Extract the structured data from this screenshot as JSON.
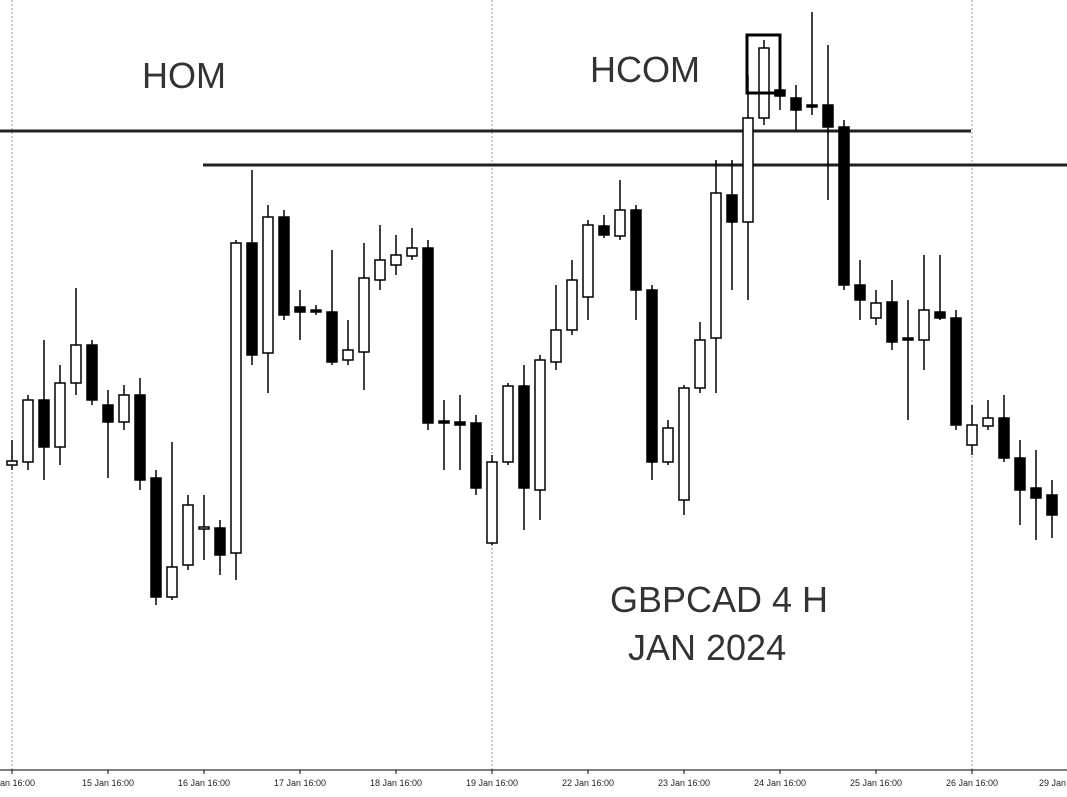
{
  "chart_data": {
    "type": "candlestick",
    "annotations": [
      "HOM",
      "HCOM",
      "GBPCAD 4 H",
      "JAN 2024"
    ],
    "x_tick_labels": [
      "an 16:00",
      "15 Jan 16:00",
      "16 Jan 16:00",
      "17 Jan 16:00",
      "18 Jan 16:00",
      "19 Jan 16:00",
      "22 Jan 16:00",
      "23 Jan 16:00",
      "24 Jan 16:00",
      "25 Jan 16:00",
      "26 Jan 16:00",
      "29 Jan"
    ],
    "ylim": [
      0,
      770
    ],
    "levels": [
      639,
      605
    ],
    "up_color": "#ffffff",
    "down_color": "#000000",
    "open": [
      305,
      308,
      370,
      323,
      387,
      425,
      365,
      348,
      375,
      292,
      173,
      205,
      241,
      242,
      217,
      527,
      417,
      553,
      463,
      460,
      458,
      410,
      418,
      490,
      505,
      514,
      522,
      349,
      348,
      347,
      227,
      308,
      384,
      280,
      408,
      440,
      473,
      544,
      534,
      560,
      480,
      308,
      270,
      382,
      432,
      575,
      548,
      652,
      680,
      672,
      665,
      665,
      643,
      485,
      452,
      468,
      432,
      430,
      458,
      452,
      325,
      344,
      352,
      312,
      282,
      275
    ],
    "high": [
      330,
      375,
      430,
      405,
      482,
      430,
      380,
      385,
      392,
      300,
      328,
      275,
      275,
      250,
      530,
      600,
      565,
      560,
      480,
      465,
      520,
      450,
      527,
      545,
      535,
      542,
      530,
      370,
      375,
      355,
      315,
      387,
      405,
      415,
      485,
      510,
      550,
      555,
      590,
      565,
      485,
      350,
      385,
      448,
      610,
      610,
      695,
      730,
      685,
      685,
      758,
      725,
      650,
      510,
      480,
      490,
      470,
      515,
      515,
      460,
      365,
      370,
      375,
      330,
      320,
      290
    ],
    "low": [
      300,
      300,
      290,
      305,
      375,
      365,
      292,
      340,
      280,
      165,
      170,
      200,
      210,
      195,
      190,
      405,
      377,
      450,
      430,
      455,
      405,
      405,
      380,
      480,
      495,
      510,
      340,
      300,
      300,
      275,
      225,
      305,
      240,
      250,
      400,
      435,
      450,
      532,
      530,
      450,
      290,
      305,
      255,
      377,
      377,
      480,
      470,
      645,
      660,
      640,
      655,
      570,
      480,
      450,
      445,
      420,
      350,
      400,
      450,
      340,
      315,
      340,
      308,
      245,
      230,
      232
    ],
    "close": [
      309,
      370,
      323,
      387,
      425,
      370,
      348,
      375,
      290,
      173,
      203,
      265,
      243,
      215,
      527,
      415,
      553,
      455,
      458,
      458,
      408,
      420,
      492,
      510,
      515,
      522,
      347,
      347,
      345,
      282,
      308,
      384,
      282,
      410,
      440,
      490,
      545,
      535,
      560,
      480,
      308,
      342,
      382,
      430,
      577,
      548,
      652,
      722,
      674,
      660,
      663,
      643,
      485,
      470,
      467,
      428,
      430,
      460,
      452,
      345,
      345,
      352,
      312,
      280,
      272,
      255
    ]
  }
}
